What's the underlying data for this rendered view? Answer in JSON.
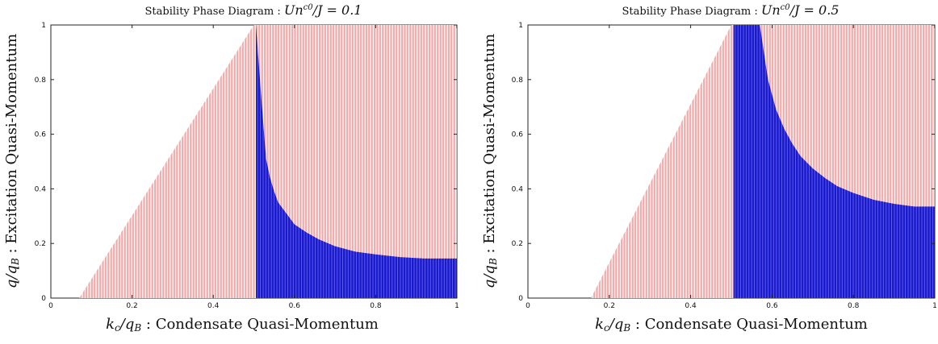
{
  "chart_data": [
    {
      "type": "heatmap",
      "title_text": "Stability Phase Diagram : ",
      "title_math": "Un",
      "title_sup": "c0",
      "title_rest": "/J = 0.1",
      "xlabel_math": "k",
      "xlabel_sub": "c",
      "xlabel_mid": "/q",
      "xlabel_sub2": "B",
      "xlabel_text": " : Condensate Quasi-Momentum",
      "ylabel_math": "q",
      "ylabel_mid": "/q",
      "ylabel_sub": "B",
      "ylabel_text": " : Excitation Quasi-Momentum",
      "xlim": [
        0,
        1
      ],
      "ylim": [
        0,
        1
      ],
      "xticks": [
        "0",
        "0.2",
        "0.4",
        "0.6",
        "0.8",
        "1"
      ],
      "yticks": [
        "0",
        "0.2",
        "0.4",
        "0.6",
        "0.8",
        "1"
      ],
      "colors": {
        "stable": "#f2b4b4",
        "unstable": "#1010cc"
      },
      "boundary": {
        "kc_min": 0.07,
        "kc_edge": 0.5,
        "q_at_min": 0.07
      },
      "unstable_curve": [
        [
          0.505,
          1.0
        ],
        [
          0.52,
          0.7
        ],
        [
          0.53,
          0.51
        ],
        [
          0.54,
          0.44
        ],
        [
          0.55,
          0.39
        ],
        [
          0.56,
          0.35
        ],
        [
          0.58,
          0.31
        ],
        [
          0.6,
          0.27
        ],
        [
          0.63,
          0.24
        ],
        [
          0.66,
          0.215
        ],
        [
          0.7,
          0.19
        ],
        [
          0.75,
          0.17
        ],
        [
          0.8,
          0.16
        ],
        [
          0.86,
          0.15
        ],
        [
          0.92,
          0.145
        ],
        [
          1.0,
          0.145
        ]
      ]
    },
    {
      "type": "heatmap",
      "title_text": "Stability Phase Diagram : ",
      "title_math": "Un",
      "title_sup": "c0",
      "title_rest": "/J = 0.5",
      "xlabel_math": "k",
      "xlabel_sub": "c",
      "xlabel_mid": "/q",
      "xlabel_sub2": "B",
      "xlabel_text": " : Condensate Quasi-Momentum",
      "ylabel_math": "q",
      "ylabel_mid": "/q",
      "ylabel_sub": "B",
      "ylabel_text": " : Excitation Quasi-Momentum",
      "xlim": [
        0,
        1
      ],
      "ylim": [
        0,
        1
      ],
      "xticks": [
        "0",
        "0.2",
        "0.4",
        "0.6",
        "0.8",
        "1"
      ],
      "yticks": [
        "0",
        "0.2",
        "0.4",
        "0.6",
        "0.8",
        "1"
      ],
      "colors": {
        "stable": "#f2b4b4",
        "unstable": "#1010cc"
      },
      "boundary": {
        "kc_min": 0.155,
        "kc_edge": 0.5,
        "q_at_min": 0.07
      },
      "unstable_curve": [
        [
          0.505,
          1.0
        ],
        [
          0.57,
          1.0
        ],
        [
          0.59,
          0.8
        ],
        [
          0.61,
          0.69
        ],
        [
          0.63,
          0.62
        ],
        [
          0.65,
          0.565
        ],
        [
          0.67,
          0.52
        ],
        [
          0.7,
          0.475
        ],
        [
          0.73,
          0.44
        ],
        [
          0.76,
          0.41
        ],
        [
          0.8,
          0.385
        ],
        [
          0.85,
          0.36
        ],
        [
          0.9,
          0.345
        ],
        [
          0.95,
          0.335
        ],
        [
          1.0,
          0.335
        ]
      ]
    }
  ]
}
